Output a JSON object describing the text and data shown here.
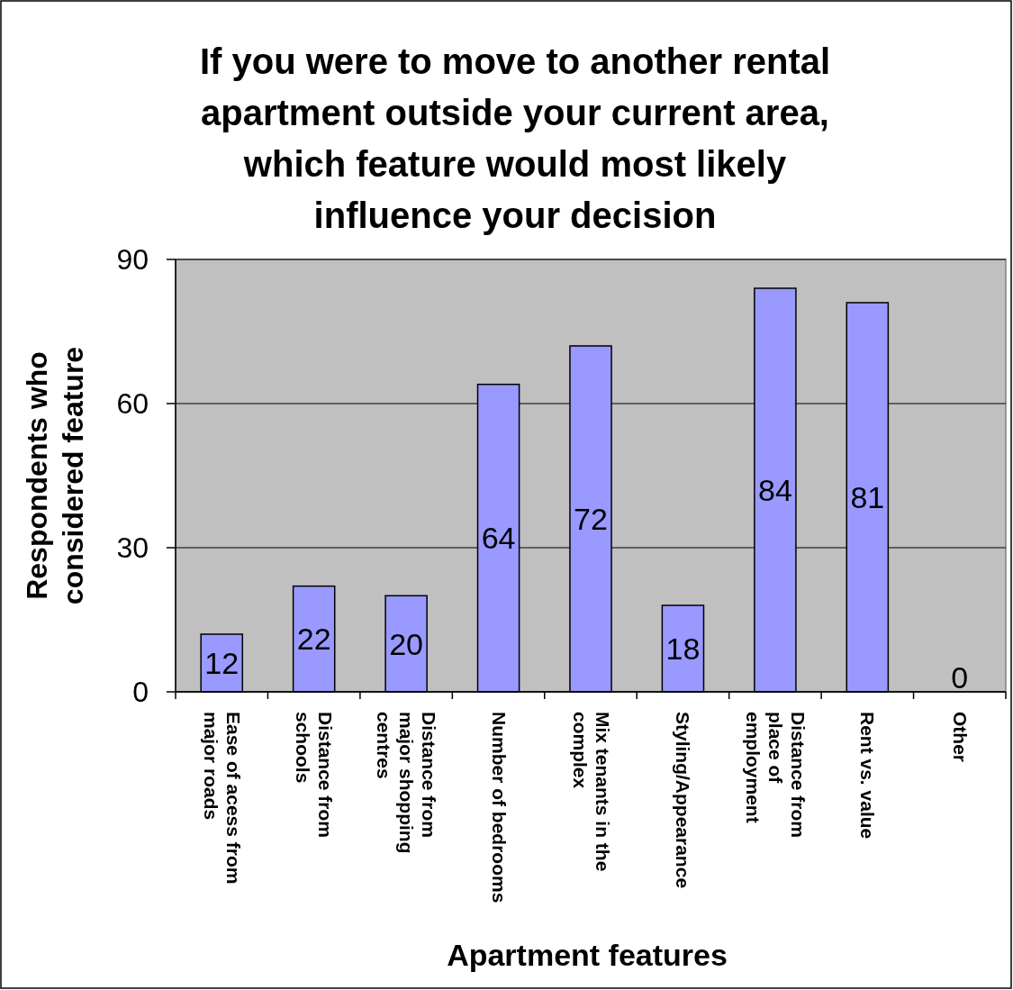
{
  "chart_data": {
    "type": "bar",
    "title": "If you were to move to another rental apartment outside your current area, which feature would most likely influence your decision",
    "xlabel": "Apartment features",
    "ylabel": "Respondents who considered feature",
    "categories": [
      "Ease of acess from major roads",
      "Distance from schools",
      "Distance from major shopping centres",
      "Number of bedrooms",
      "Mix tenants in the complex",
      "Styling/Appearance",
      "Distance from place of employment",
      "Rent vs. value",
      "Other"
    ],
    "values": [
      12,
      22,
      20,
      64,
      72,
      18,
      84,
      81,
      0
    ],
    "color": "#9999ff",
    "ylim": [
      0,
      90
    ],
    "yticks": [
      0,
      30,
      60,
      90
    ],
    "grid": "y",
    "data_labels": true
  }
}
